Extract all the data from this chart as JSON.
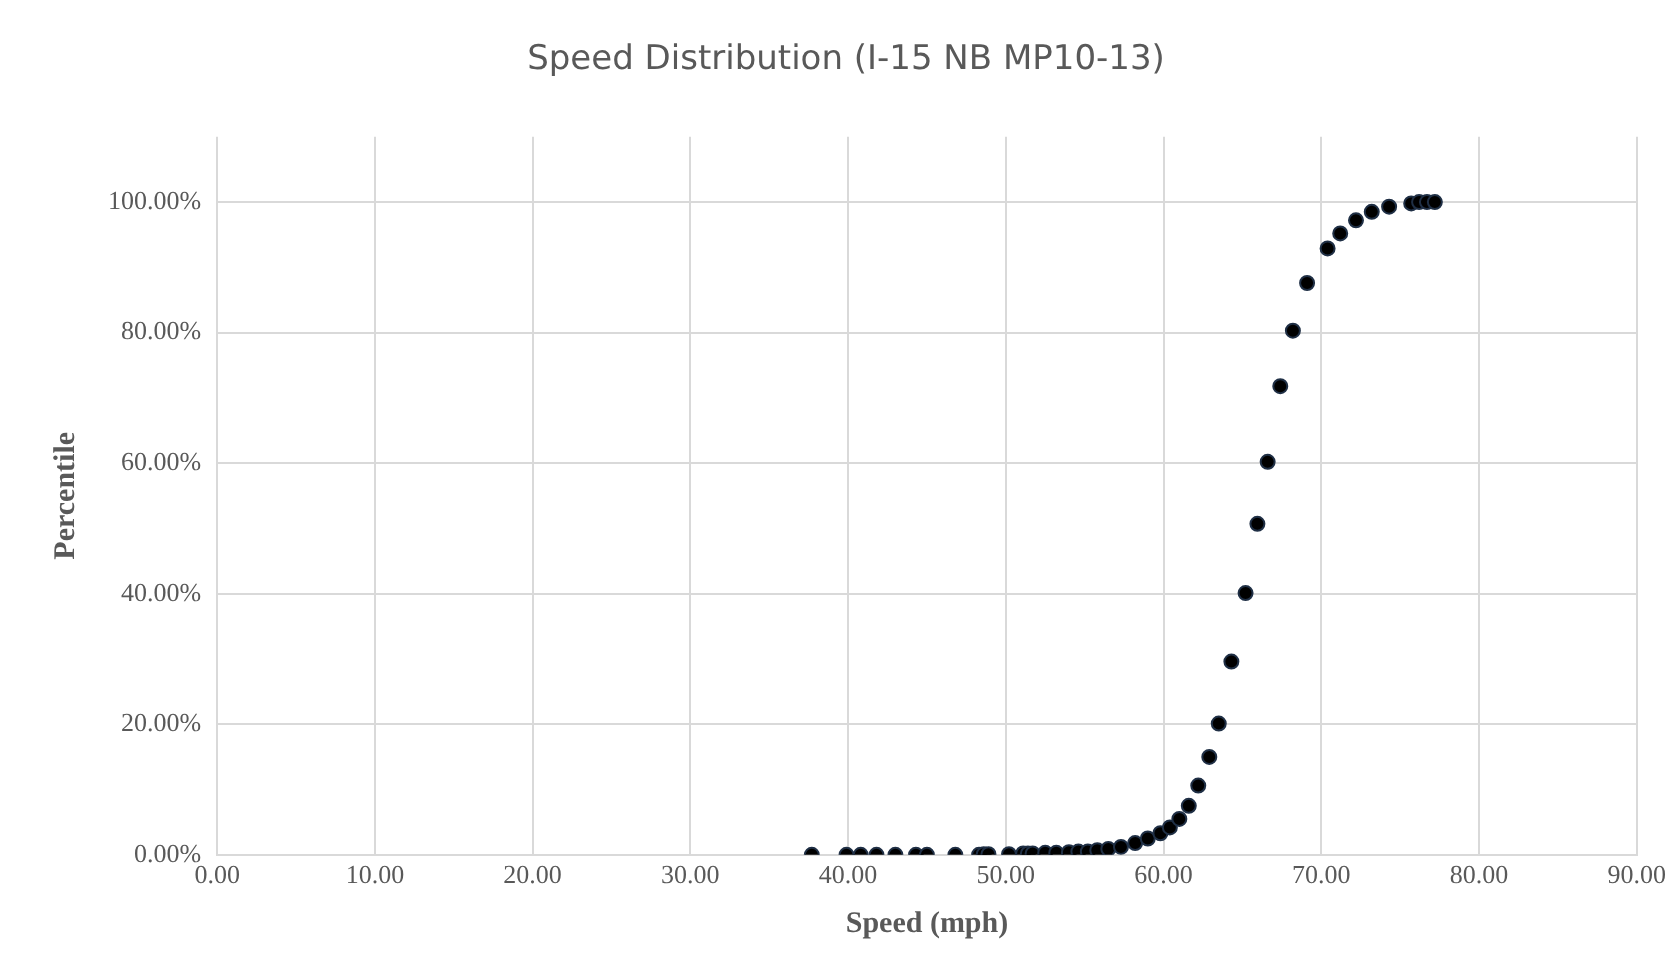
{
  "chart_data": {
    "type": "scatter",
    "title": "Speed Distribution (I-15 NB MP10-13)",
    "xlabel": "Speed (mph)",
    "ylabel": "Percentile",
    "x": [
      37.7,
      39.9,
      40.8,
      41.8,
      43.0,
      44.3,
      45.0,
      46.8,
      48.3,
      48.6,
      48.9,
      50.2,
      51.1,
      51.4,
      51.7,
      52.5,
      53.2,
      54.0,
      54.6,
      55.2,
      55.8,
      56.5,
      57.3,
      58.2,
      59.0,
      59.8,
      60.4,
      61.0,
      61.6,
      62.2,
      62.9,
      63.5,
      64.3,
      65.2,
      65.95,
      66.6,
      67.4,
      68.2,
      69.1,
      70.4,
      71.2,
      72.2,
      73.2,
      74.3,
      75.7,
      76.2,
      76.7,
      77.2
    ],
    "series": [
      {
        "color": "#000000",
        "values": [
          0,
          0,
          0,
          0,
          0,
          0,
          0,
          0,
          0,
          0.1,
          0.1,
          0.1,
          0.2,
          0.2,
          0.2,
          0.3,
          0.3,
          0.4,
          0.5,
          0.5,
          0.7,
          0.9,
          1.2,
          1.8,
          2.5,
          3.3,
          4.2,
          5.5,
          7.5,
          10.6,
          15,
          20.1,
          29.6,
          40.1,
          50.7,
          60.2,
          71.8,
          80.3,
          87.6,
          92.9,
          95.2,
          97.2,
          98.5,
          99.3,
          99.8,
          100,
          100,
          100
        ]
      }
    ],
    "xlim": [
      0,
      90
    ],
    "xticks": [
      {
        "value": 0,
        "label": "0.00"
      },
      {
        "value": 10,
        "label": "10.00"
      },
      {
        "value": 20,
        "label": "20.00"
      },
      {
        "value": 30,
        "label": "30.00"
      },
      {
        "value": 40,
        "label": "40.00"
      },
      {
        "value": 50,
        "label": "50.00"
      },
      {
        "value": 60,
        "label": "60.00"
      },
      {
        "value": 70,
        "label": "70.00"
      },
      {
        "value": 80,
        "label": "80.00"
      },
      {
        "value": 90,
        "label": "90.00"
      }
    ],
    "ylim": [
      0,
      110
    ],
    "yticks": [
      {
        "value": 0,
        "label": "0.00%"
      },
      {
        "value": 20,
        "label": "20.00%"
      },
      {
        "value": 40,
        "label": "40.00%"
      },
      {
        "value": 60,
        "label": "60.00%"
      },
      {
        "value": 80,
        "label": "80.00%"
      },
      {
        "value": 100,
        "label": "100.00%"
      }
    ],
    "grid": true,
    "marker": "circle",
    "legend": false
  }
}
